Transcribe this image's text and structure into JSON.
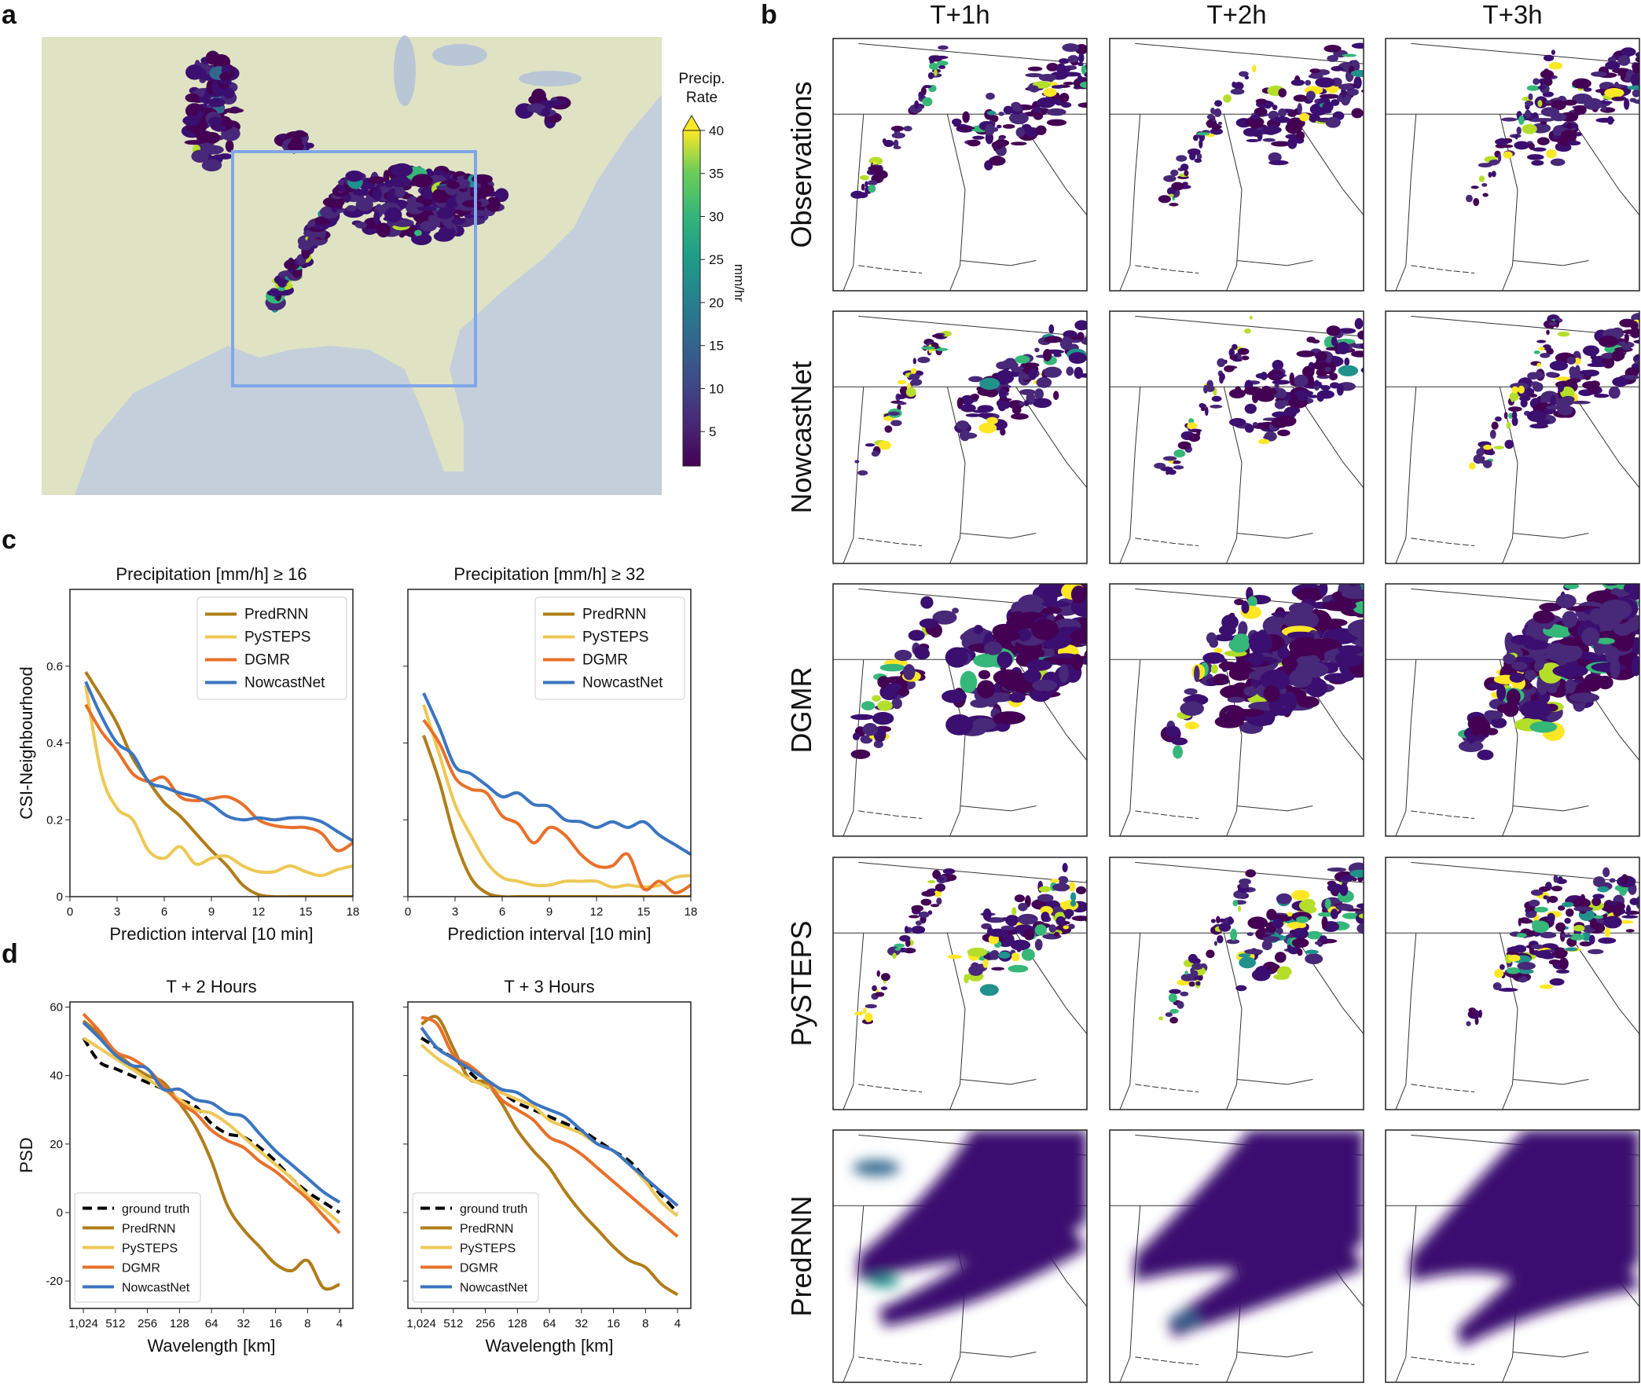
{
  "panel_letters": {
    "a": "a",
    "b": "b",
    "c": "c",
    "d": "d"
  },
  "panel_a": {
    "colorbar": {
      "title_line1": "Precip.",
      "title_line2": "Rate",
      "unit": "mm/hr",
      "ticks": [
        "5",
        "10",
        "15",
        "20",
        "25",
        "30",
        "35",
        "40"
      ],
      "range": [
        1,
        40
      ],
      "colormap": "viridis",
      "extend": "max"
    },
    "colors": {
      "sea": "#c5cfdb",
      "land": "#dfe3c4",
      "box": "#7fa6e8",
      "precip_low": "#3a0f6e"
    }
  },
  "panel_b": {
    "columns": [
      "T+1h",
      "T+2h",
      "T+3h"
    ],
    "rows": [
      "Observations",
      "NowcastNet",
      "DGMR",
      "PySTEPS",
      "PredRNN"
    ]
  },
  "chart_data": [
    {
      "type": "line",
      "title": "Precipitation [mm/h]  ≥  16",
      "xlabel": "Prediction interval [10 min]",
      "ylabel": "CSI-Neighbourhood",
      "xlim": [
        0,
        18
      ],
      "ylim": [
        0,
        0.8
      ],
      "xticks": [
        0,
        3,
        6,
        9,
        12,
        15,
        18
      ],
      "yticks": [
        0,
        0.2,
        0.4,
        0.6
      ],
      "ytick_labels": [
        "0",
        "0.2",
        "0.4",
        "0.6"
      ],
      "grid": false,
      "legend": "upper-right",
      "x": [
        1,
        2,
        3,
        4,
        5,
        6,
        7,
        8,
        9,
        10,
        11,
        12,
        13,
        14,
        15,
        16,
        17,
        18
      ],
      "series": [
        {
          "name": "PredRNN",
          "color": "#b07d1a",
          "values": [
            0.585,
            0.52,
            0.45,
            0.36,
            0.3,
            0.245,
            0.21,
            0.165,
            0.12,
            0.08,
            0.03,
            0.005,
            0,
            0,
            0,
            0,
            0,
            0
          ]
        },
        {
          "name": "PySTEPS",
          "color": "#edc855",
          "values": [
            0.55,
            0.32,
            0.23,
            0.2,
            0.12,
            0.1,
            0.13,
            0.085,
            0.1,
            0.105,
            0.08,
            0.065,
            0.065,
            0.08,
            0.065,
            0.055,
            0.07,
            0.08
          ]
        },
        {
          "name": "DGMR",
          "color": "#e8702a",
          "values": [
            0.5,
            0.43,
            0.38,
            0.32,
            0.3,
            0.31,
            0.26,
            0.25,
            0.255,
            0.26,
            0.24,
            0.2,
            0.185,
            0.18,
            0.18,
            0.165,
            0.12,
            0.14
          ]
        },
        {
          "name": "NowcastNet",
          "color": "#3b75c0",
          "values": [
            0.56,
            0.47,
            0.4,
            0.37,
            0.3,
            0.285,
            0.27,
            0.26,
            0.24,
            0.21,
            0.2,
            0.205,
            0.2,
            0.205,
            0.205,
            0.195,
            0.17,
            0.145
          ]
        }
      ]
    },
    {
      "type": "line",
      "title": "Precipitation [mm/h]  ≥  32",
      "xlabel": "Prediction interval [10 min]",
      "ylabel": "",
      "xlim": [
        0,
        18
      ],
      "ylim": [
        0,
        0.8
      ],
      "xticks": [
        0,
        3,
        6,
        9,
        12,
        15,
        18
      ],
      "yticks": [
        0,
        0.2,
        0.4,
        0.6
      ],
      "ytick_labels": [],
      "grid": false,
      "legend": "upper-right",
      "x": [
        1,
        2,
        3,
        4,
        5,
        6,
        7,
        8,
        9,
        10,
        11,
        12,
        13,
        14,
        15,
        16,
        17,
        18
      ],
      "series": [
        {
          "name": "PredRNN",
          "color": "#b07d1a",
          "values": [
            0.42,
            0.3,
            0.15,
            0.05,
            0.01,
            0,
            0,
            0,
            0,
            0,
            0,
            0,
            0,
            0,
            0,
            0,
            0,
            0
          ]
        },
        {
          "name": "PySTEPS",
          "color": "#edc855",
          "values": [
            0.5,
            0.37,
            0.24,
            0.16,
            0.09,
            0.05,
            0.04,
            0.03,
            0.03,
            0.04,
            0.04,
            0.04,
            0.025,
            0.03,
            0.025,
            0.03,
            0.05,
            0.055
          ]
        },
        {
          "name": "DGMR",
          "color": "#e8702a",
          "values": [
            0.46,
            0.4,
            0.31,
            0.28,
            0.27,
            0.21,
            0.19,
            0.14,
            0.18,
            0.16,
            0.11,
            0.08,
            0.08,
            0.11,
            0.02,
            0.04,
            0.01,
            0.03
          ]
        },
        {
          "name": "NowcastNet",
          "color": "#3b75c0",
          "values": [
            0.53,
            0.44,
            0.34,
            0.32,
            0.29,
            0.26,
            0.27,
            0.24,
            0.235,
            0.2,
            0.195,
            0.18,
            0.195,
            0.18,
            0.195,
            0.16,
            0.135,
            0.11
          ]
        }
      ]
    },
    {
      "type": "line",
      "title": "T + 2 Hours",
      "xlabel": "Wavelength [km]",
      "ylabel": "PSD",
      "xscale": "log2-reversed",
      "xlim": [
        1370,
        3
      ],
      "ylim": [
        -28,
        61.5
      ],
      "xticks": [
        1024,
        512,
        256,
        128,
        64,
        32,
        16,
        8,
        4
      ],
      "xtick_labels": [
        "1,024",
        "512",
        "256",
        "128",
        "64",
        "32",
        "16",
        "8",
        "4"
      ],
      "yticks": [
        -20,
        0,
        20,
        40,
        60
      ],
      "ytick_labels": [
        "-20",
        "0",
        "20",
        "40",
        "60"
      ],
      "grid": false,
      "legend": "lower-left",
      "x": [
        1024,
        724,
        512,
        362,
        256,
        181,
        128,
        90.5,
        64,
        45.3,
        32,
        22.6,
        16,
        11.3,
        8,
        5.66,
        4
      ],
      "series": [
        {
          "name": "ground truth",
          "color": "#000000",
          "dashed": true,
          "values": [
            51,
            44,
            42,
            40,
            38,
            36,
            33,
            31,
            26,
            23,
            22,
            19,
            15,
            10,
            6,
            3,
            0
          ]
        },
        {
          "name": "PredRNN",
          "color": "#b07d1a",
          "values": [
            56,
            52,
            47,
            43,
            40,
            38,
            32,
            25,
            15,
            2,
            -5,
            -10,
            -15,
            -17,
            -14,
            -22,
            -21
          ]
        },
        {
          "name": "PySTEPS",
          "color": "#edc855",
          "values": [
            51,
            48,
            45,
            42,
            39,
            36,
            33,
            30,
            29,
            26,
            22,
            18,
            14,
            10,
            5,
            1,
            -3
          ]
        },
        {
          "name": "DGMR",
          "color": "#e8702a",
          "values": [
            58,
            53,
            47,
            45,
            42,
            37,
            32,
            29,
            24,
            21,
            19,
            15,
            12,
            8,
            4,
            -1,
            -6
          ]
        },
        {
          "name": "NowcastNet",
          "color": "#3b75c0",
          "values": [
            55.5,
            51,
            46,
            43,
            42,
            36,
            36,
            33,
            32,
            29,
            28,
            23,
            18,
            14,
            10,
            6,
            3
          ]
        }
      ]
    },
    {
      "type": "line",
      "title": "T + 3 Hours",
      "xlabel": "Wavelength [km]",
      "ylabel": "",
      "xscale": "log2-reversed",
      "xlim": [
        1370,
        3
      ],
      "ylim": [
        -28,
        61.5
      ],
      "xticks": [
        1024,
        512,
        256,
        128,
        64,
        32,
        16,
        8,
        4
      ],
      "xtick_labels": [
        "1,024",
        "512",
        "256",
        "128",
        "64",
        "32",
        "16",
        "8",
        "4"
      ],
      "yticks": [
        -20,
        0,
        20,
        40,
        60
      ],
      "ytick_labels": [],
      "grid": false,
      "legend": "lower-left",
      "x": [
        1024,
        724,
        512,
        362,
        256,
        181,
        128,
        90.5,
        64,
        45.3,
        32,
        22.6,
        16,
        11.3,
        8,
        5.66,
        4
      ],
      "series": [
        {
          "name": "ground truth",
          "color": "#000000",
          "dashed": true,
          "values": [
            51,
            48,
            45,
            41,
            37,
            35,
            32,
            30,
            28,
            26,
            24,
            21,
            18,
            15,
            10,
            5,
            0
          ]
        },
        {
          "name": "PredRNN",
          "color": "#b07d1a",
          "values": [
            55,
            57,
            48,
            39,
            38,
            32,
            24,
            18,
            13,
            6,
            0,
            -5,
            -10,
            -14,
            -16,
            -21,
            -24
          ]
        },
        {
          "name": "PySTEPS",
          "color": "#edc855",
          "values": [
            49,
            45,
            42,
            39,
            37,
            35,
            33,
            31,
            27,
            25,
            23,
            20,
            18,
            14,
            9,
            3,
            -1
          ]
        },
        {
          "name": "DGMR",
          "color": "#e8702a",
          "values": [
            57,
            55,
            46,
            43,
            39,
            33,
            30,
            27,
            22,
            20,
            17,
            13,
            9,
            5,
            1,
            -3,
            -7
          ]
        },
        {
          "name": "NowcastNet",
          "color": "#3b75c0",
          "values": [
            54,
            48,
            45,
            42,
            39,
            36,
            35,
            32,
            30,
            28,
            24,
            20,
            18,
            14,
            10,
            6,
            2
          ]
        }
      ]
    }
  ]
}
